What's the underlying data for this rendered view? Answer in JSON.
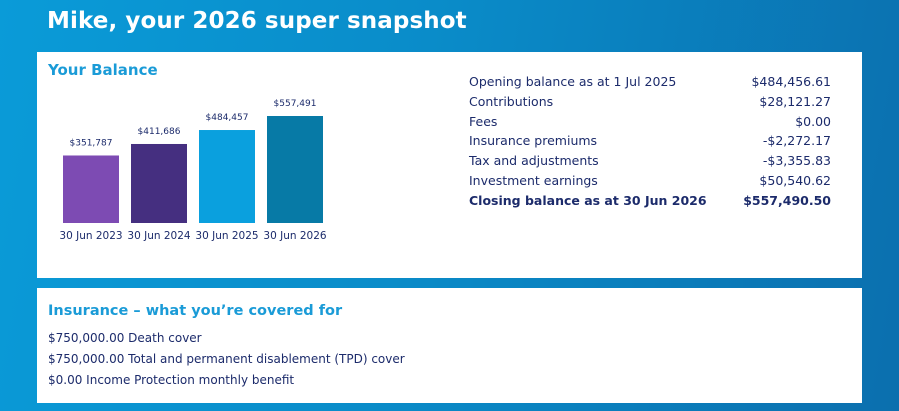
{
  "header": {
    "title": "Mike, your 2026 super snapshot"
  },
  "balance": {
    "heading": "Your Balance",
    "summary": [
      {
        "label": "Opening balance as at 1 Jul 2025",
        "value": "$484,456.61"
      },
      {
        "label": "Contributions",
        "value": "$28,121.27"
      },
      {
        "label": "Fees",
        "value": "$0.00"
      },
      {
        "label": "Insurance premiums",
        "value": "-$2,272.17"
      },
      {
        "label": "Tax and adjustments",
        "value": "-$3,355.83"
      },
      {
        "label": "Investment earnings",
        "value": "$50,540.62"
      },
      {
        "label": "Closing balance as at 30 Jun 2026",
        "value": "$557,490.50"
      }
    ]
  },
  "chart_data": {
    "type": "bar",
    "categories": [
      "30 Jun 2023",
      "30 Jun 2024",
      "30 Jun 2025",
      "30 Jun 2026"
    ],
    "values": [
      351787,
      411686,
      484457,
      557491
    ],
    "value_labels": [
      "$351,787",
      "$411,686",
      "$484,457",
      "$557,491"
    ],
    "colors": [
      "#7d4bb3",
      "#452f80",
      "#0aa0de",
      "#077aa6"
    ],
    "title": "",
    "xlabel": "",
    "ylabel": "",
    "ylim": [
      0,
      557491
    ],
    "grid": false
  },
  "insurance": {
    "heading": "Insurance – what you’re covered for",
    "items": [
      "$750,000.00 Death cover",
      "$750,000.00 Total and permanent disablement (TPD) cover",
      "$0.00 Income Protection monthly benefit"
    ]
  }
}
